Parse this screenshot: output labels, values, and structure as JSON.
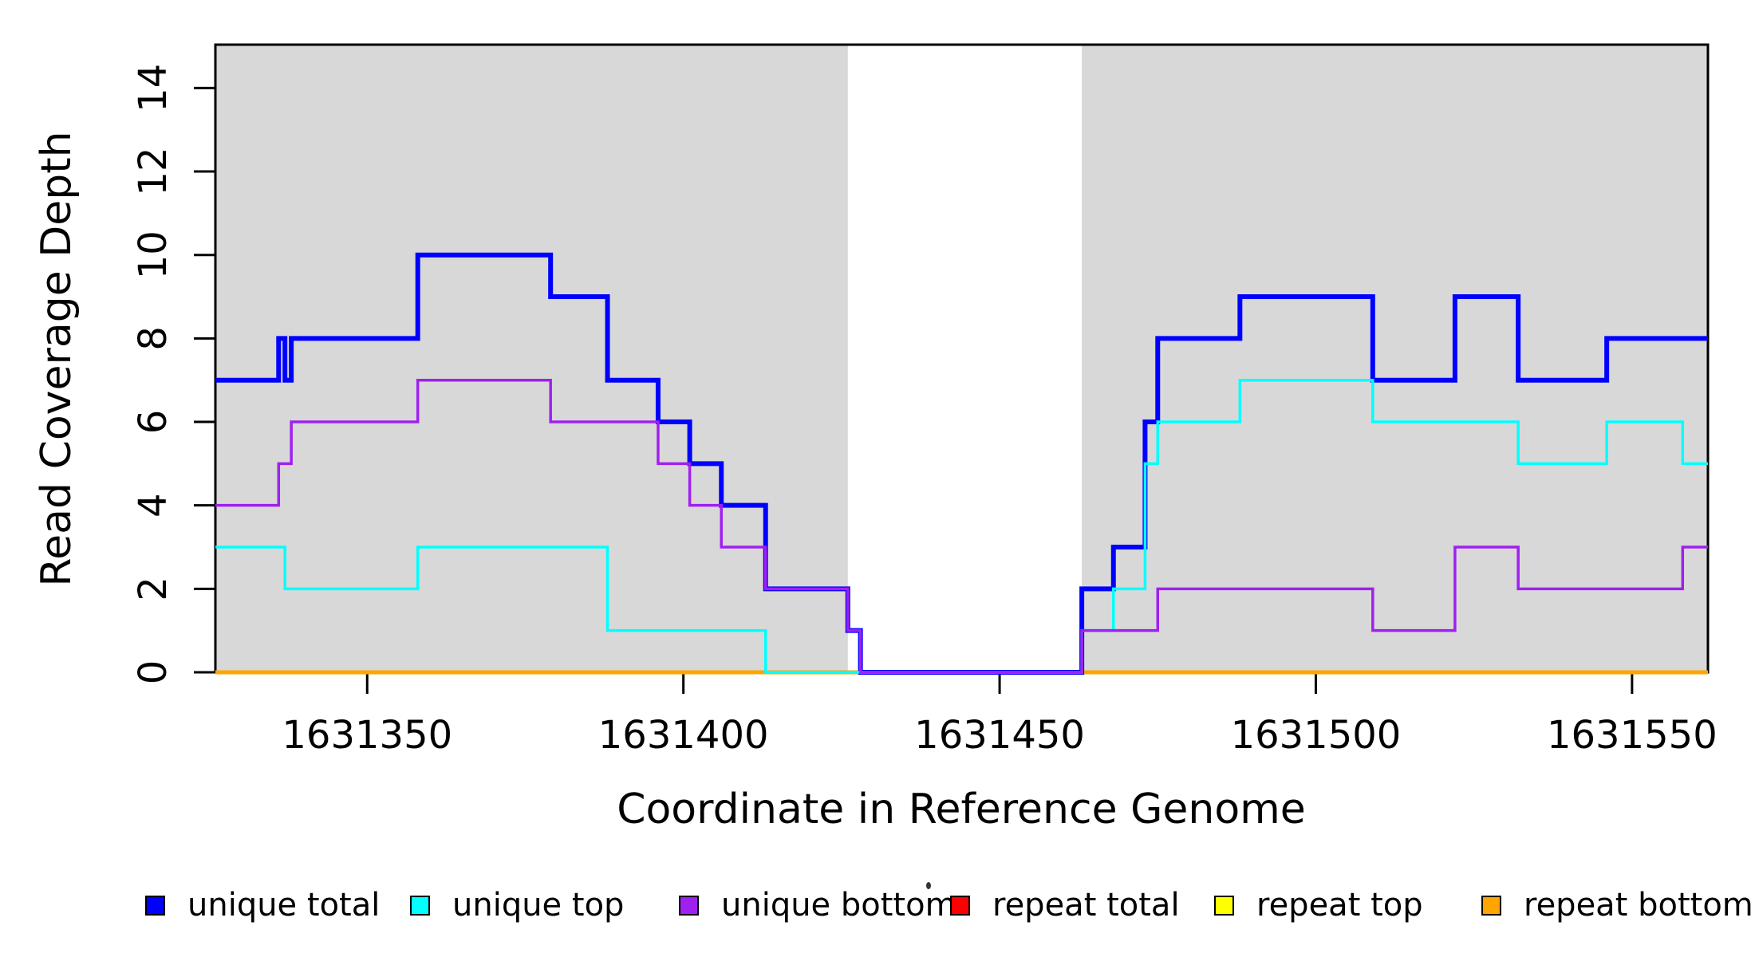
{
  "chart_data": {
    "type": "line",
    "subtype": "step-coverage",
    "title": "",
    "xlabel": "Coordinate in Reference Genome",
    "ylabel": "Read Coverage Depth",
    "xlim": [
      1631326,
      1631562
    ],
    "ylim": [
      0,
      15
    ],
    "grid": false,
    "legend_position": "bottom",
    "x_ticks": [
      1631350,
      1631400,
      1631450,
      1631500,
      1631550
    ],
    "x_tick_labels": [
      "1631350",
      "1631400",
      "1631450",
      "1631500",
      "1631550"
    ],
    "y_ticks": [
      0,
      2,
      4,
      6,
      8,
      10,
      12,
      14
    ],
    "y_tick_labels": [
      "0",
      "2",
      "4",
      "6",
      "8",
      "10",
      "12",
      "14"
    ],
    "shaded_regions": {
      "color": "#D8D8D8",
      "ranges": [
        [
          1631326,
          1631426
        ],
        [
          1631463,
          1631562
        ]
      ]
    },
    "series": [
      {
        "id": "unique_total",
        "label": "unique total",
        "color": "#0000FF",
        "line_width": 6,
        "steps": [
          [
            1631326,
            7
          ],
          [
            1631336,
            8
          ],
          [
            1631337,
            7
          ],
          [
            1631338,
            8
          ],
          [
            1631358,
            10
          ],
          [
            1631379,
            9
          ],
          [
            1631388,
            7
          ],
          [
            1631396,
            6
          ],
          [
            1631401,
            5
          ],
          [
            1631406,
            4
          ],
          [
            1631413,
            2
          ],
          [
            1631426,
            1
          ],
          [
            1631428,
            0
          ],
          [
            1631463,
            2
          ],
          [
            1631468,
            3
          ],
          [
            1631473,
            6
          ],
          [
            1631475,
            8
          ],
          [
            1631488,
            9
          ],
          [
            1631509,
            7
          ],
          [
            1631522,
            9
          ],
          [
            1631532,
            7
          ],
          [
            1631546,
            8
          ]
        ]
      },
      {
        "id": "unique_top",
        "label": "unique top",
        "color": "#00FFFF",
        "line_width": 3.5,
        "steps": [
          [
            1631326,
            3
          ],
          [
            1631337,
            2
          ],
          [
            1631358,
            3
          ],
          [
            1631388,
            1
          ],
          [
            1631413,
            0
          ],
          [
            1631463,
            1
          ],
          [
            1631468,
            2
          ],
          [
            1631473,
            5
          ],
          [
            1631475,
            6
          ],
          [
            1631488,
            7
          ],
          [
            1631509,
            6
          ],
          [
            1631532,
            5
          ],
          [
            1631546,
            6
          ],
          [
            1631558,
            5
          ]
        ]
      },
      {
        "id": "unique_bottom",
        "label": "unique bottom",
        "color": "#A020F0",
        "line_width": 3.5,
        "steps": [
          [
            1631326,
            4
          ],
          [
            1631336,
            5
          ],
          [
            1631338,
            6
          ],
          [
            1631358,
            7
          ],
          [
            1631379,
            6
          ],
          [
            1631396,
            5
          ],
          [
            1631401,
            4
          ],
          [
            1631406,
            3
          ],
          [
            1631413,
            2
          ],
          [
            1631426,
            1
          ],
          [
            1631428,
            0
          ],
          [
            1631463,
            1
          ],
          [
            1631475,
            2
          ],
          [
            1631509,
            1
          ],
          [
            1631522,
            3
          ],
          [
            1631532,
            2
          ],
          [
            1631558,
            3
          ]
        ]
      },
      {
        "id": "repeat_total",
        "label": "repeat total",
        "color": "#FF0000",
        "line_width": 5,
        "steps": [
          [
            1631326,
            0
          ]
        ]
      },
      {
        "id": "repeat_top",
        "label": "repeat top",
        "color": "#FFFF00",
        "line_width": 5,
        "steps": [
          [
            1631326,
            0
          ]
        ]
      },
      {
        "id": "repeat_bottom",
        "label": "repeat bottom",
        "color": "#FFA500",
        "line_width": 5,
        "steps": [
          [
            1631326,
            0
          ]
        ]
      }
    ],
    "draw_order": [
      "repeat_total",
      "repeat_top",
      "repeat_bottom",
      "unique_total",
      "unique_top",
      "unique_bottom"
    ],
    "axis_color": "#000000",
    "background_color": "#FFFFFF"
  }
}
